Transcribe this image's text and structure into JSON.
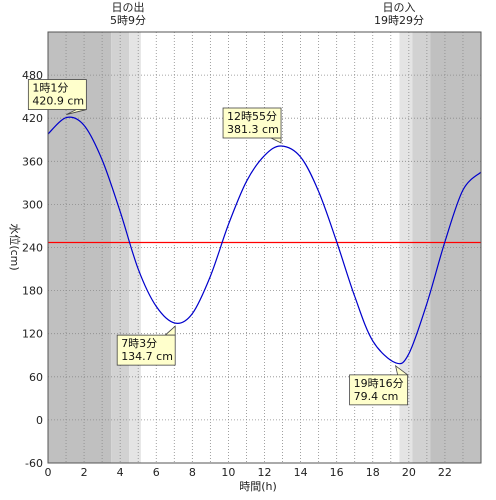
{
  "sun": {
    "sunrise_title": "日の出",
    "sunrise_time": "5時9分",
    "sunset_title": "日の入",
    "sunset_time": "19時29分"
  },
  "chart_data": {
    "type": "line",
    "title": "",
    "xlabel": "時間(h)",
    "ylabel": "水位(cm)",
    "xlim": [
      0,
      24
    ],
    "ylim": [
      -60,
      540
    ],
    "x_ticks": [
      0,
      2,
      4,
      6,
      8,
      10,
      12,
      14,
      16,
      18,
      20,
      22
    ],
    "x_tick_labels": [
      "0",
      "2",
      "4",
      "6",
      "8",
      "10",
      "12",
      "14",
      "16",
      "18",
      "20",
      "22"
    ],
    "y_ticks": [
      -60,
      0,
      60,
      120,
      180,
      240,
      300,
      360,
      420,
      480
    ],
    "y_tick_labels": [
      "-60",
      "0",
      "60",
      "120",
      "180",
      "240",
      "300",
      "360",
      "420",
      "480"
    ],
    "grid": true,
    "reference_line": {
      "value": 247,
      "color": "#ff0000"
    },
    "series": [
      {
        "color": "#0000cc",
        "x": [
          0,
          1.017,
          2,
          3,
          4,
          5,
          6,
          7.05,
          8,
          9,
          10,
          11,
          12,
          12.917,
          14,
          15,
          16,
          17,
          18,
          19.267,
          20,
          21,
          22,
          23,
          24
        ],
        "y": [
          398,
          420.9,
          410,
          362,
          290,
          210,
          158,
          134.7,
          148,
          200,
          272,
          332,
          368,
          381.3,
          366,
          318,
          248,
          172,
          110,
          79.4,
          92,
          162,
          248,
          320,
          345
        ]
      }
    ],
    "extremes": [
      {
        "x": 1.017,
        "y": 420.9,
        "time_label": "1時1分",
        "value_label": "420.9 cm"
      },
      {
        "x": 7.05,
        "y": 134.7,
        "time_label": "7時3分",
        "value_label": "134.7 cm"
      },
      {
        "x": 12.917,
        "y": 381.3,
        "time_label": "12時55分",
        "value_label": "381.3 cm"
      },
      {
        "x": 19.267,
        "y": 79.4,
        "time_label": "19時16分",
        "value_label": "79.4 cm"
      }
    ],
    "shading": [
      {
        "from": 0,
        "to": 3.5,
        "color": "#c0c0c0"
      },
      {
        "from": 3.5,
        "to": 4.5,
        "color": "#d2d2d2"
      },
      {
        "from": 4.5,
        "to": 5.15,
        "color": "#e4e4e4"
      },
      {
        "from": 5.15,
        "to": 19.48,
        "color": "#ffffff"
      },
      {
        "from": 19.48,
        "to": 20.2,
        "color": "#e4e4e4"
      },
      {
        "from": 20.2,
        "to": 21.2,
        "color": "#d2d2d2"
      },
      {
        "from": 21.2,
        "to": 24,
        "color": "#c0c0c0"
      }
    ]
  }
}
